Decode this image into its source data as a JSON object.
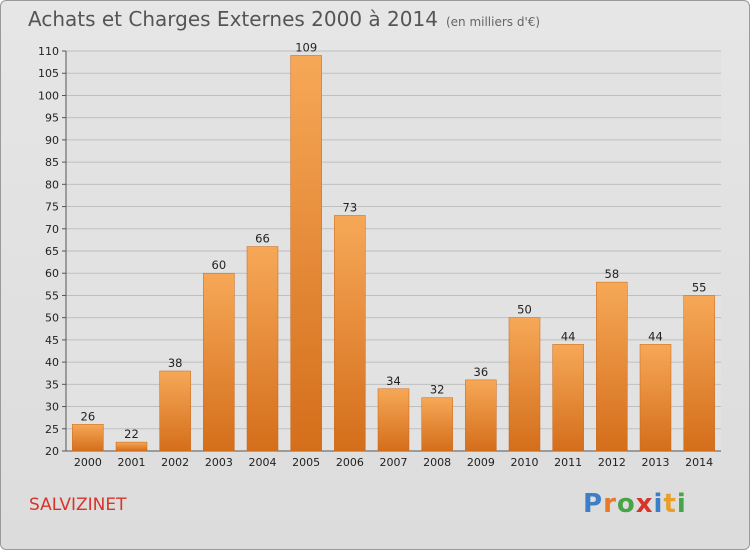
{
  "header": {
    "title": "Achats et Charges Externes 2000 à 2014",
    "subtitle": "(en milliers d'€)"
  },
  "footer": {
    "commune": "SALVIZINET",
    "logo": {
      "letters": [
        "P",
        "r",
        "o",
        "x",
        "i",
        "t",
        "i"
      ],
      "colors": [
        "#3b7fc8",
        "#e8792b",
        "#48a447",
        "#d9342b",
        "#3b7fc8",
        "#e8a02b",
        "#48a447"
      ]
    }
  },
  "colors": {
    "bar_light": "#f6a857",
    "bar_dark": "#d46e1b",
    "grid": "#bfbfbf"
  },
  "chart_data": {
    "type": "bar",
    "categories": [
      "2000",
      "2001",
      "2002",
      "2003",
      "2004",
      "2005",
      "2006",
      "2007",
      "2008",
      "2009",
      "2010",
      "2011",
      "2012",
      "2013",
      "2014"
    ],
    "values": [
      26,
      22,
      38,
      60,
      66,
      109,
      73,
      34,
      32,
      36,
      50,
      44,
      58,
      44,
      55
    ],
    "ylim": [
      20,
      110
    ],
    "yticks": [
      20,
      25,
      30,
      35,
      40,
      45,
      50,
      55,
      60,
      65,
      70,
      75,
      80,
      85,
      90,
      95,
      100,
      105,
      110
    ],
    "grid": true
  }
}
